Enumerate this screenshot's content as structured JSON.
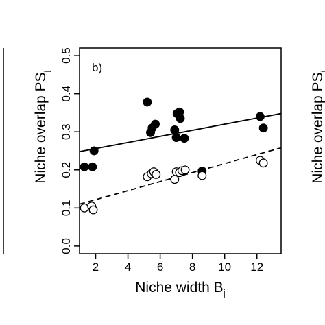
{
  "chart_data": {
    "type": "scatter",
    "panel_label": "b)",
    "xlabel": "Niche width B",
    "xlabel_sub": "j",
    "ylabel": "Niche overlap PS",
    "ylabel_sub": "j",
    "right_panel_ylabel": "Niche overlap PS",
    "right_panel_ylabel_sub": "j",
    "xlim": [
      1.0,
      13.5
    ],
    "ylim": [
      -0.02,
      0.52
    ],
    "x_ticks": [
      2,
      4,
      6,
      8,
      10,
      12
    ],
    "x_tick_labels": [
      "2",
      "4",
      "6",
      "8",
      "10",
      "12"
    ],
    "y_ticks": [
      0.0,
      0.1,
      0.2,
      0.3,
      0.4,
      0.5
    ],
    "y_tick_labels": [
      "0.0",
      "0.1",
      "0.2",
      "0.3",
      "0.4",
      "0.5"
    ],
    "grid": false,
    "series": [
      {
        "marker": "filled-circle",
        "x": [
          1.3,
          1.8,
          1.9,
          5.2,
          5.4,
          5.5,
          5.7,
          6.9,
          7.0,
          7.05,
          7.2,
          7.25,
          7.5,
          8.6,
          12.2,
          12.4
        ],
        "y": [
          0.208,
          0.208,
          0.25,
          0.378,
          0.298,
          0.31,
          0.32,
          0.305,
          0.285,
          0.348,
          0.352,
          0.335,
          0.283,
          0.197,
          0.34,
          0.31
        ],
        "fit_line": {
          "style": "solid",
          "x": [
            1.0,
            13.5
          ],
          "y": [
            0.248,
            0.348
          ]
        }
      },
      {
        "marker": "open-circle",
        "x": [
          1.3,
          1.75,
          1.85,
          5.2,
          5.45,
          5.6,
          5.75,
          6.9,
          7.0,
          7.2,
          7.35,
          7.55,
          8.6,
          12.2,
          12.4
        ],
        "y": [
          0.1,
          0.105,
          0.095,
          0.182,
          0.19,
          0.195,
          0.188,
          0.175,
          0.195,
          0.193,
          0.198,
          0.2,
          0.185,
          0.225,
          0.218
        ],
        "fit_line": {
          "style": "dashed",
          "x": [
            1.0,
            13.5
          ],
          "y": [
            0.11,
            0.258
          ]
        }
      }
    ]
  }
}
